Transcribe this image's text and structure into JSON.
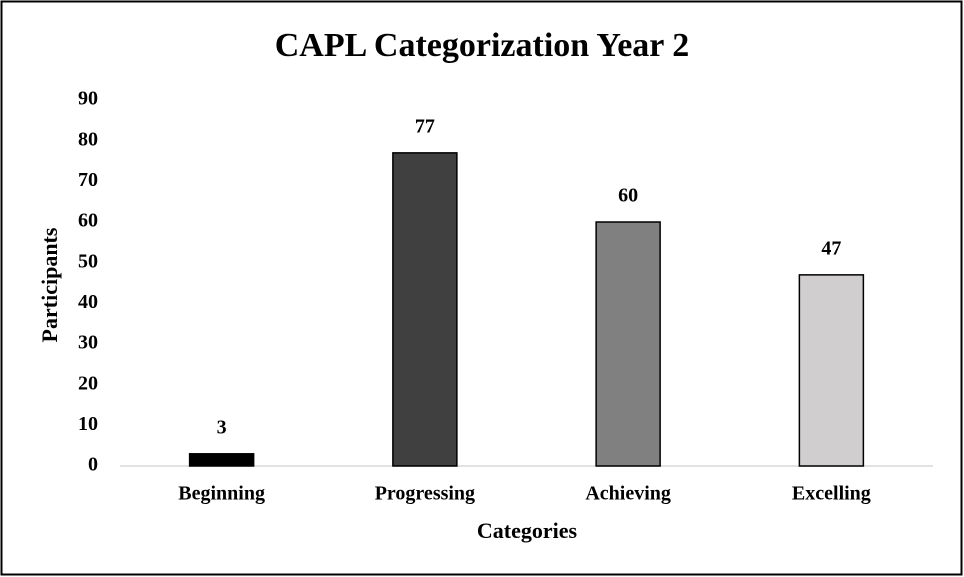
{
  "chart_data": {
    "type": "bar",
    "title": "CAPL Categorization Year 2",
    "x_label": "Categories",
    "y_label": "Participants",
    "categories": [
      "Beginning",
      "Progressing",
      "Achieving",
      "Excelling"
    ],
    "values": [
      3,
      77,
      60,
      47
    ],
    "colors": [
      "#000000",
      "#404040",
      "#808080",
      "#d0cece"
    ],
    "ylim": [
      0,
      90
    ],
    "yticks": [
      0,
      10,
      20,
      30,
      40,
      50,
      60,
      70,
      80,
      90
    ],
    "grid": false,
    "data_labels": true
  }
}
